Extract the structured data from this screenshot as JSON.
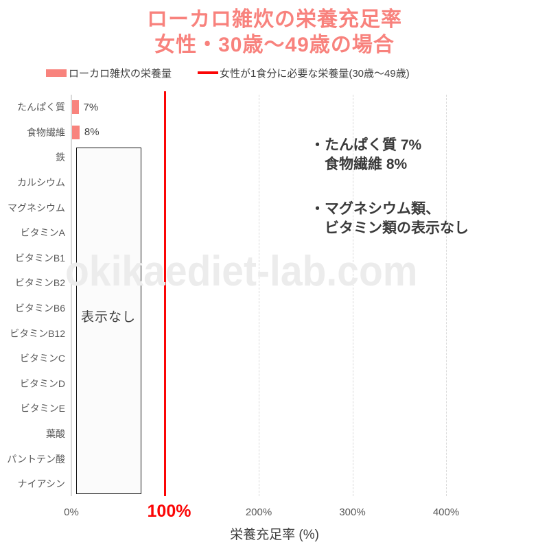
{
  "title": {
    "line1": "ローカロ雑炊の栄養充足率",
    "line2": "女性・30歳〜49歳の場合"
  },
  "legend": {
    "items": [
      {
        "label": "ローカロ雑炊の栄養量",
        "swatch": "bar"
      },
      {
        "label": "女性が1食分に必要な栄養量(30歳〜49歳)",
        "swatch": "line"
      }
    ]
  },
  "chart_data": {
    "type": "bar",
    "orientation": "horizontal",
    "title": "ローカロ雑炊の栄養充足率 女性・30歳〜49歳の場合",
    "categories": [
      "たんぱく質",
      "食物繊維",
      "鉄",
      "カルシウム",
      "マグネシウム",
      "ビタミンA",
      "ビタミンB1",
      "ビタミンB2",
      "ビタミンB6",
      "ビタミンB12",
      "ビタミンC",
      "ビタミンD",
      "ビタミンE",
      "葉酸",
      "パントテン酸",
      "ナイアシン"
    ],
    "series": [
      {
        "name": "ローカロ雑炊の栄養量",
        "values": [
          7,
          8,
          null,
          null,
          null,
          null,
          null,
          null,
          null,
          null,
          null,
          null,
          null,
          null,
          null,
          null
        ]
      }
    ],
    "bar_label_suffix": "%",
    "no_data_box": {
      "label": "表示なし",
      "from_category": "鉄",
      "to_category": "ナイアシン"
    },
    "reference_line": {
      "value": 100,
      "label": "100%",
      "name": "女性が1食分に必要な栄養量(30歳〜49歳)"
    },
    "x_ticks": [
      0,
      100,
      200,
      300,
      400
    ],
    "x_tick_labels": [
      "0%",
      "100%",
      "200%",
      "300%",
      "400%"
    ],
    "gridlines": [
      200,
      300,
      400
    ],
    "xlim": [
      0,
      460
    ],
    "xlabel": "栄養充足率 (%)",
    "legend_position": "top",
    "grid": "vertical-dashed"
  },
  "annotations": [
    {
      "bullet": "・",
      "line1": "たんぱく質 7%",
      "line2": "食物繊維 8%"
    },
    {
      "bullet": "・",
      "line1": "マグネシウム類、",
      "line2": "ビタミン類の表示なし"
    }
  ],
  "watermark": "okikaediet-lab.com",
  "colors": {
    "bar": "#f8837d",
    "title": "#f8827d",
    "reference_line": "#fb0505",
    "grid": "#d9d9d9",
    "axis_text": "#595959",
    "text": "#404040",
    "annotation": "#3a3a3a",
    "watermark": "#ececec"
  }
}
